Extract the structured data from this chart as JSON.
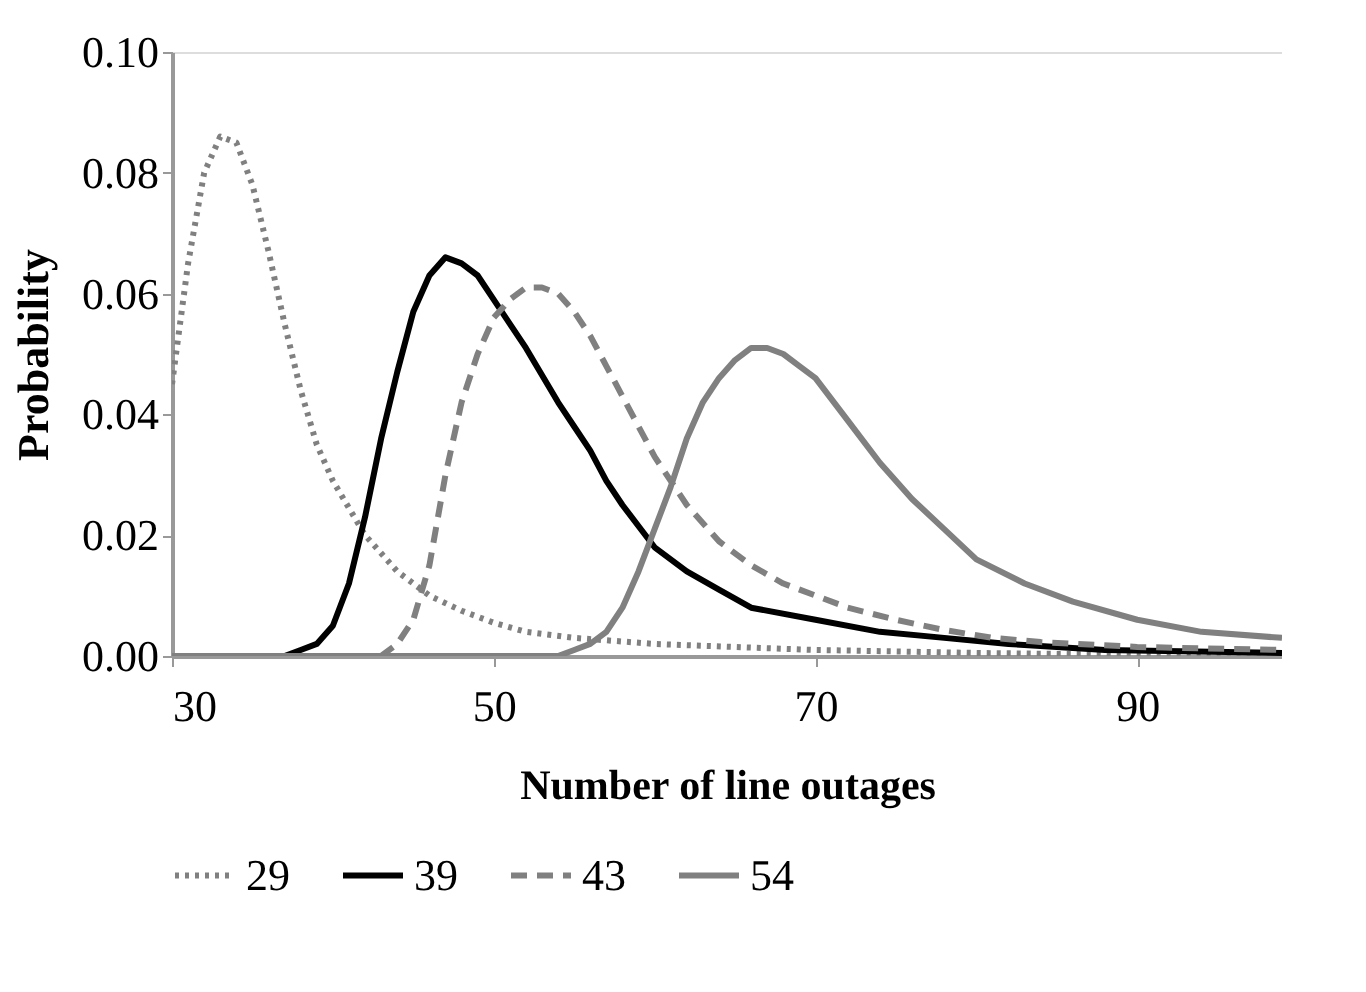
{
  "chart_data": {
    "type": "line",
    "xlabel": "Number of line outages",
    "ylabel": "Probability",
    "xlim": [
      30,
      99
    ],
    "xticks": [
      30,
      50,
      70,
      90
    ],
    "ylim": [
      0,
      0.1
    ],
    "yticks": [
      {
        "value": 0,
        "label": "0.00"
      },
      {
        "value": 0.02,
        "label": "0.02"
      },
      {
        "value": 0.04,
        "label": "0.04"
      },
      {
        "value": 0.06,
        "label": "0.06"
      },
      {
        "value": 0.08,
        "label": "0.08"
      },
      {
        "value": 0.1,
        "label": "0.10"
      }
    ],
    "grid": false,
    "legend": "bottom",
    "marker": "none",
    "series": [
      {
        "name": "29",
        "color": "#808080",
        "line_style": "dotted",
        "x": [
          30,
          31,
          32,
          33,
          34,
          35,
          36,
          37,
          38,
          39,
          40,
          42,
          44,
          46,
          48,
          50,
          52,
          55,
          60,
          65,
          70,
          80,
          90,
          99
        ],
        "values": [
          0.045,
          0.065,
          0.08,
          0.086,
          0.085,
          0.078,
          0.067,
          0.055,
          0.044,
          0.035,
          0.029,
          0.02,
          0.014,
          0.01,
          0.0075,
          0.0055,
          0.004,
          0.003,
          0.002,
          0.0015,
          0.001,
          0.0005,
          0.0002,
          0.0001
        ]
      },
      {
        "name": "39",
        "color": "#000000",
        "line_style": "solid",
        "x": [
          30,
          37,
          38,
          39,
          40,
          41,
          42,
          43,
          44,
          45,
          46,
          47,
          48,
          49,
          50,
          52,
          54,
          55,
          56,
          57,
          58,
          60,
          62,
          64,
          66,
          70,
          74,
          78,
          82,
          88,
          99
        ],
        "values": [
          0,
          0,
          0.001,
          0.002,
          0.005,
          0.012,
          0.023,
          0.036,
          0.047,
          0.057,
          0.063,
          0.066,
          0.065,
          0.063,
          0.059,
          0.051,
          0.042,
          0.038,
          0.034,
          0.029,
          0.025,
          0.018,
          0.014,
          0.011,
          0.008,
          0.006,
          0.004,
          0.003,
          0.002,
          0.001,
          0.0005
        ]
      },
      {
        "name": "43",
        "color": "#808080",
        "line_style": "dashed",
        "x": [
          30,
          43,
          44,
          45,
          46,
          47,
          48,
          49,
          50,
          51,
          52,
          53,
          54,
          55,
          56,
          57,
          58,
          59,
          60,
          62,
          64,
          66,
          68,
          70,
          72,
          75,
          78,
          81,
          84,
          90,
          99
        ],
        "values": [
          0,
          0,
          0.002,
          0.006,
          0.015,
          0.03,
          0.042,
          0.05,
          0.056,
          0.059,
          0.061,
          0.061,
          0.06,
          0.057,
          0.053,
          0.048,
          0.043,
          0.038,
          0.033,
          0.025,
          0.019,
          0.015,
          0.012,
          0.01,
          0.008,
          0.006,
          0.0043,
          0.003,
          0.0023,
          0.0015,
          0.001
        ]
      },
      {
        "name": "54",
        "color": "#808080",
        "line_style": "solid",
        "x": [
          30,
          54,
          55,
          56,
          57,
          58,
          59,
          60,
          61,
          62,
          63,
          64,
          65,
          66,
          67,
          68,
          69,
          70,
          72,
          74,
          76,
          78,
          80,
          83,
          86,
          90,
          94,
          99
        ],
        "values": [
          0,
          0,
          0.001,
          0.002,
          0.004,
          0.008,
          0.014,
          0.021,
          0.028,
          0.036,
          0.042,
          0.046,
          0.049,
          0.051,
          0.051,
          0.05,
          0.048,
          0.046,
          0.039,
          0.032,
          0.026,
          0.021,
          0.016,
          0.012,
          0.009,
          0.006,
          0.004,
          0.003
        ]
      }
    ]
  }
}
